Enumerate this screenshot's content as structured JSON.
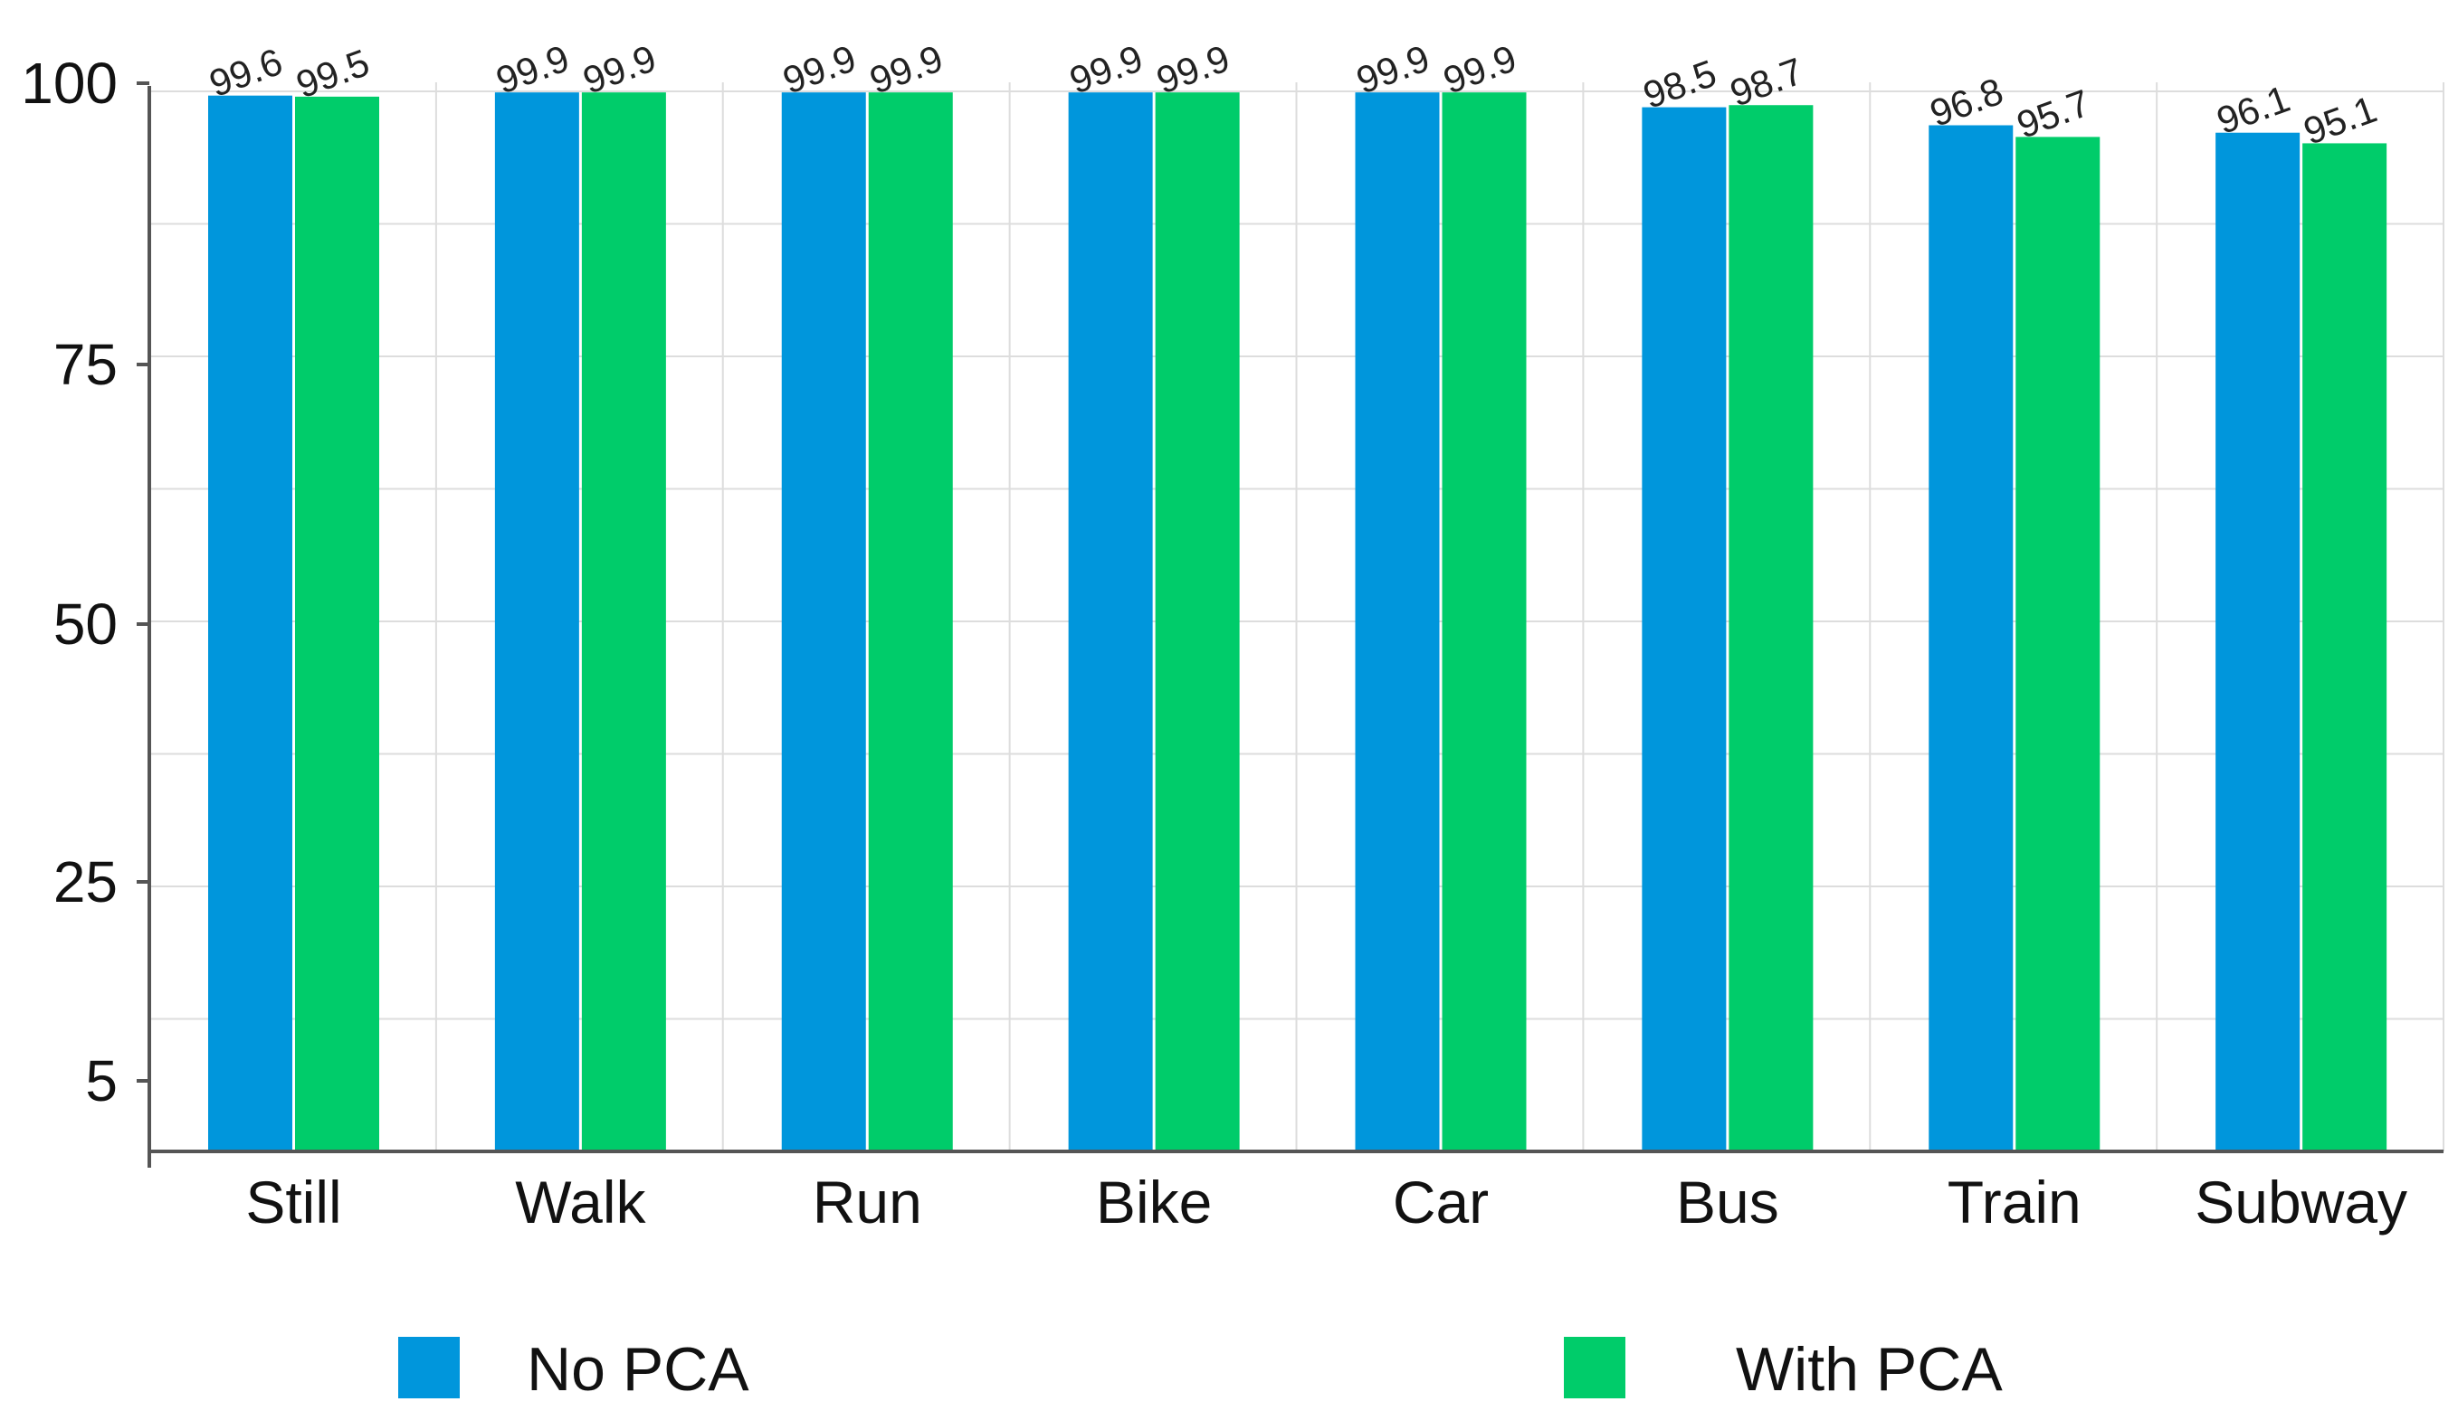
{
  "chart_data": {
    "type": "bar",
    "title": "",
    "xlabel": "",
    "ylabel": "",
    "categories": [
      "Still",
      "Walk",
      "Run",
      "Bike",
      "Car",
      "Bus",
      "Train",
      "Subway"
    ],
    "series": [
      {
        "name": "No PCA",
        "color": "#0096dc",
        "values": [
          99.6,
          99.9,
          99.9,
          99.9,
          99.9,
          98.5,
          96.8,
          96.1
        ]
      },
      {
        "name": "With PCA",
        "color": "#00cc6a",
        "values": [
          99.5,
          99.9,
          99.9,
          99.9,
          99.9,
          98.7,
          95.7,
          95.1
        ]
      }
    ],
    "y_ticks": [
      {
        "value": 5,
        "label": "5"
      },
      {
        "value": 25,
        "label": "25"
      },
      {
        "value": 50,
        "label": "50"
      },
      {
        "value": 75,
        "label": "75"
      },
      {
        "value": 100,
        "label": "100"
      }
    ],
    "ylim": [
      0,
      100
    ],
    "grid": true,
    "legend_position": "bottom"
  }
}
